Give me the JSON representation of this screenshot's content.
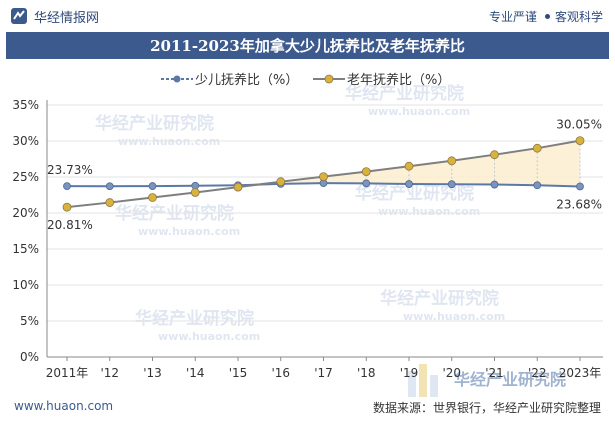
{
  "header": {
    "brand": "华经情报网",
    "tag1": "专业严谨",
    "tag2": "客观科学"
  },
  "footer": {
    "source_url": "www.huaon.com",
    "source_text": "数据来源：世界银行，华经产业研究院整理"
  },
  "watermark": {
    "cn": "华经产业研究院",
    "en": "www.huaon.com"
  },
  "colors": {
    "title_bg": "#3c5a8e",
    "children_line": "#5b79a8",
    "elderly_line": "#7f7f7f",
    "elderly_marker": "#d9b13b",
    "fill": "#fbedd0"
  },
  "chart_data": {
    "type": "line",
    "title": "2011-2023年加拿大少儿抚养比及老年抚养比",
    "categories": [
      "2011年",
      "'12",
      "'13",
      "'14",
      "'15",
      "'16",
      "'17",
      "'18",
      "'19",
      "'20",
      "'21",
      "'22",
      "2023年"
    ],
    "series": [
      {
        "name": "少儿抚养比（%）",
        "values": [
          23.73,
          23.72,
          23.74,
          23.78,
          23.85,
          24.05,
          24.15,
          24.12,
          24.02,
          24.0,
          23.95,
          23.85,
          23.68
        ]
      },
      {
        "name": "老年抚养比（%）",
        "values": [
          20.81,
          21.45,
          22.15,
          22.85,
          23.6,
          24.35,
          25.05,
          25.75,
          26.5,
          27.25,
          28.1,
          29.0,
          30.05
        ]
      }
    ],
    "data_labels": {
      "children_first": "23.73%",
      "children_last": "23.68%",
      "elderly_first": "20.81%",
      "elderly_last": "30.05%"
    },
    "yticks": [
      "0%",
      "5%",
      "10%",
      "15%",
      "20%",
      "25%",
      "30%",
      "35%"
    ],
    "ylim": [
      0,
      35
    ],
    "legend_position": "top-center"
  }
}
